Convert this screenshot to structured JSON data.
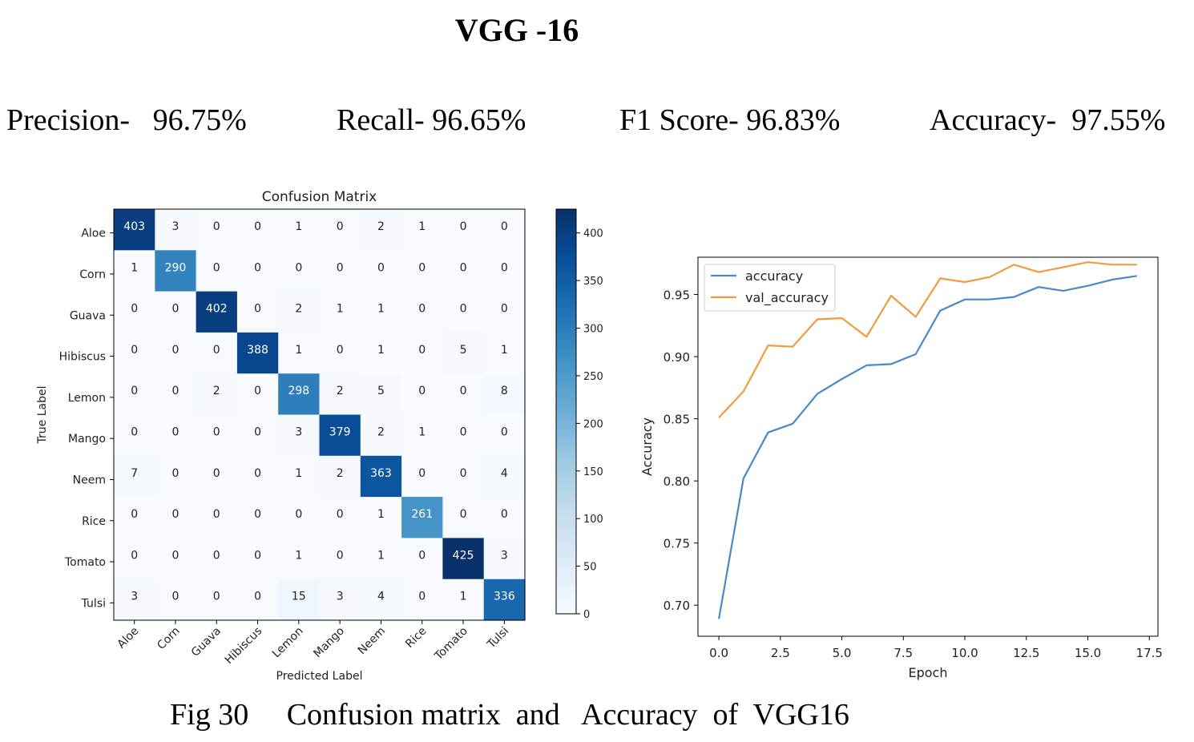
{
  "page": {
    "heading": "VGG -16",
    "metrics": [
      {
        "text": "Precision-   96.75%"
      },
      {
        "text": "Recall- 96.65%"
      },
      {
        "text": "F1 Score- 96.83%"
      },
      {
        "text": "Accuracy-  97.55%"
      }
    ],
    "caption": "Fig 30     Confusion matrix  and   Accuracy  of  VGG16"
  },
  "colors": {
    "cmap_low": "#f7fbff",
    "cmap_high": "#08306b",
    "accuracy": "#4c88c4",
    "val_accuracy": "#f29a3e"
  },
  "chart_data": [
    {
      "type": "heatmap",
      "title": "Confusion Matrix",
      "xlabel": "Predicted Label",
      "ylabel": "True Label",
      "labels": [
        "Aloe",
        "Corn",
        "Guava",
        "Hibiscus",
        "Lemon",
        "Mango",
        "Neem",
        "Rice",
        "Tomato",
        "Tulsi"
      ],
      "matrix": [
        [
          403,
          3,
          0,
          0,
          1,
          0,
          2,
          1,
          0,
          0
        ],
        [
          1,
          290,
          0,
          0,
          0,
          0,
          0,
          0,
          0,
          0
        ],
        [
          0,
          0,
          402,
          0,
          2,
          1,
          1,
          0,
          0,
          0
        ],
        [
          0,
          0,
          0,
          388,
          1,
          0,
          1,
          0,
          5,
          1
        ],
        [
          0,
          0,
          2,
          0,
          298,
          2,
          5,
          0,
          0,
          8
        ],
        [
          0,
          0,
          0,
          0,
          3,
          379,
          2,
          1,
          0,
          0
        ],
        [
          7,
          0,
          0,
          0,
          1,
          2,
          363,
          0,
          0,
          4
        ],
        [
          0,
          0,
          0,
          0,
          0,
          0,
          1,
          261,
          0,
          0
        ],
        [
          0,
          0,
          0,
          0,
          1,
          0,
          1,
          0,
          425,
          3
        ],
        [
          3,
          0,
          0,
          0,
          15,
          3,
          4,
          0,
          1,
          336
        ]
      ],
      "colorbar_ticks": [
        0,
        50,
        100,
        150,
        200,
        250,
        300,
        350,
        400
      ],
      "vmin": 0,
      "vmax": 425
    },
    {
      "type": "line",
      "xlabel": "Epoch",
      "ylabel": "Accuracy",
      "x": [
        0,
        1,
        2,
        3,
        4,
        5,
        6,
        7,
        8,
        9,
        10,
        11,
        12,
        13,
        14,
        15,
        16,
        17
      ],
      "xlim": [
        -0.85,
        17.85
      ],
      "ylim": [
        0.675,
        0.98
      ],
      "xticks": [
        0.0,
        2.5,
        5.0,
        7.5,
        10.0,
        12.5,
        15.0,
        17.5
      ],
      "xtick_labels": [
        "0.0",
        "2.5",
        "5.0",
        "7.5",
        "10.0",
        "12.5",
        "15.0",
        "17.5"
      ],
      "yticks": [
        0.7,
        0.75,
        0.8,
        0.85,
        0.9,
        0.95
      ],
      "ytick_labels": [
        "0.70",
        "0.75",
        "0.80",
        "0.85",
        "0.90",
        "0.95"
      ],
      "legend": "top-left",
      "series": [
        {
          "name": "accuracy",
          "values": [
            0.689,
            0.802,
            0.839,
            0.846,
            0.87,
            0.882,
            0.893,
            0.894,
            0.902,
            0.937,
            0.946,
            0.946,
            0.948,
            0.956,
            0.953,
            0.957,
            0.962,
            0.965
          ]
        },
        {
          "name": "val_accuracy",
          "values": [
            0.851,
            0.872,
            0.909,
            0.908,
            0.93,
            0.931,
            0.916,
            0.949,
            0.932,
            0.963,
            0.96,
            0.964,
            0.974,
            0.968,
            0.972,
            0.976,
            0.974,
            0.974
          ]
        }
      ]
    }
  ]
}
